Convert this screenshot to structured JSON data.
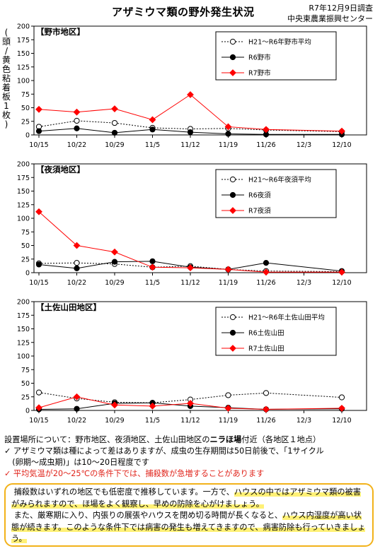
{
  "header": {
    "title": "アザミウマ類の野外発生状況",
    "date": "R7年12月9日調査",
    "org": "中央東農業振興センター"
  },
  "y_axis_label_chars": [
    "(",
    "頭",
    "/",
    "黄",
    "色",
    "粘",
    "着",
    "板",
    "1",
    "枚",
    ")"
  ],
  "chart_data": [
    {
      "type": "line",
      "title": "【野市地区】",
      "categories": [
        "10/15",
        "10/22",
        "10/29",
        "11/5",
        "11/12",
        "11/19",
        "11/26",
        "12/3",
        "12/10"
      ],
      "ylim": [
        0,
        200
      ],
      "yticks": [
        0,
        25,
        50,
        75,
        100,
        125,
        150,
        175,
        200
      ],
      "legend_position": "top-right",
      "series": [
        {
          "name": "H21～R6年野市平均",
          "color": "#000000",
          "marker": "open-circle",
          "dashed": true,
          "values": [
            15,
            26,
            22,
            13,
            11,
            12,
            9,
            null,
            6
          ]
        },
        {
          "name": "R6野市",
          "color": "#000000",
          "marker": "filled-circle",
          "dashed": false,
          "values": [
            7,
            12,
            4,
            10,
            5,
            2,
            1,
            null,
            1
          ]
        },
        {
          "name": "R7野市",
          "color": "#ff0000",
          "marker": "diamond",
          "dashed": false,
          "values": [
            47,
            42,
            48,
            28,
            74,
            15,
            10,
            null,
            7
          ]
        }
      ]
    },
    {
      "type": "line",
      "title": "【夜須地区】",
      "categories": [
        "10/15",
        "10/22",
        "10/29",
        "11/5",
        "11/12",
        "11/19",
        "11/26",
        "12/3",
        "12/10"
      ],
      "ylim": [
        0,
        200
      ],
      "yticks": [
        0,
        25,
        50,
        75,
        100,
        125,
        150,
        175,
        200
      ],
      "legend_position": "top-right",
      "series": [
        {
          "name": "H21～R6年夜須平均",
          "color": "#000000",
          "marker": "open-circle",
          "dashed": true,
          "values": [
            17,
            18,
            16,
            10,
            12,
            6,
            3,
            null,
            2
          ]
        },
        {
          "name": "R6夜須",
          "color": "#000000",
          "marker": "filled-circle",
          "dashed": false,
          "values": [
            15,
            8,
            20,
            21,
            10,
            6,
            18,
            null,
            3
          ]
        },
        {
          "name": "R7夜須",
          "color": "#ff0000",
          "marker": "diamond",
          "dashed": false,
          "values": [
            112,
            50,
            38,
            10,
            9,
            6,
            1,
            null,
            1
          ]
        }
      ]
    },
    {
      "type": "line",
      "title": "【土佐山田地区】",
      "categories": [
        "10/15",
        "10/22",
        "10/29",
        "11/5",
        "11/12",
        "11/19",
        "11/26",
        "12/3",
        "12/10"
      ],
      "ylim": [
        0,
        200
      ],
      "yticks": [
        0,
        25,
        50,
        75,
        100,
        125,
        150,
        175,
        200
      ],
      "legend_position": "top-right",
      "series": [
        {
          "name": "H21～R6年土佐山田平均",
          "color": "#000000",
          "marker": "open-circle",
          "dashed": true,
          "values": [
            33,
            22,
            15,
            14,
            20,
            28,
            32,
            null,
            24
          ]
        },
        {
          "name": "R6土佐山田",
          "color": "#000000",
          "marker": "filled-circle",
          "dashed": false,
          "values": [
            2,
            3,
            13,
            14,
            8,
            5,
            2,
            null,
            3
          ]
        },
        {
          "name": "R7土佐山田",
          "color": "#ff0000",
          "marker": "diamond",
          "dashed": false,
          "values": [
            5,
            25,
            10,
            8,
            13,
            4,
            2,
            null,
            4
          ]
        }
      ]
    }
  ],
  "notes": {
    "line1_prefix": "設置場所について：野市地区、夜須地区、土佐山田地区の",
    "line1_bold": "ニラほ場",
    "line1_suffix": "付近（各地区１地点）",
    "line2": "✓ アザミウマ類は種によって差はありますが、成虫の生存期間は50日前後で、「1サイクル",
    "line3": "　(卵期～成虫期)」は10～20日程度です",
    "line4": "✓ 平均気温が20～25℃の条件下では、捕殺数が急増することがあります"
  },
  "callout": {
    "p1_a": "捕殺数はいずれの地区でも低密度で推移しています。一方で、",
    "p1_b": "ハウスの中ではアザミウマ類の被害がみられますので、ほ場をよく観察し、早めの防除を心がけましょう。",
    "p2_a": "また、厳寒期に入り、内張りの展張やハウスを閉め切る時間が長くなると、",
    "p2_b": "ハウス内湿度が高い状態が続きます。このような条件下では病害の発生も増えてきますので、病害防除も行っていきましょう。"
  }
}
